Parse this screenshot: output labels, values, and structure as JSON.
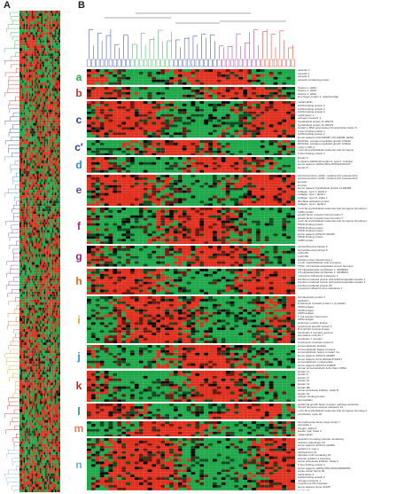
{
  "figure": {
    "panel_a_label": "A",
    "panel_b_label": "B"
  },
  "colors": {
    "red": "#e0301e",
    "green": "#1fa84a",
    "black": "#0a0a0a"
  },
  "clusters": [
    {
      "id": "a",
      "letter": "a",
      "color": "#2ea84f",
      "rows": 6,
      "genes": [
        "caveolin 2",
        "caveolin 1",
        "caveolin 1",
        "caveolin-containing protein"
      ]
    },
    {
      "id": "b",
      "letter": "b",
      "color": "#c0392b",
      "rows": 5,
      "genes": [
        "histone 1, H2bk",
        "histone 1, H2bd",
        "histone 1, H2bd",
        "zinc finger protein 1, mitochondrial",
        "histone 1, H2bd"
      ]
    },
    {
      "id": "c",
      "letter": "c",
      "color": "#2a3f9e",
      "rows": 14,
      "genes": [
        "melanophilin",
        "GATA binding protein 3",
        "GATA binding protein 3",
        "GATA binding protein 3",
        "trefoil factor 1",
        "estrogen receptor 1",
        "hypothetical protein FLJ20273",
        "hypothetical protein FLJ20273",
        "similar to RNA polymerase III transcription factor 5",
        "X-box binding protein 1",
        "GATA binding protein 3",
        "Homo sapiens LOC143038 LOC143038 mRNA",
        "estrogen receptor 1"
      ]
    },
    {
      "id": "c2",
      "letter": "c'",
      "color": "#2a3f9e",
      "rows": 6,
      "genes": [
        "RAIG/fas, estrogen-regulated growth inhibitor",
        "RAIG/fas, estrogen-regulated growth inhibitor",
        "cyclin 1 (GP 1)",
        "v-erb-b2 erythroblastic leukemia viral oncogene",
        "X-box binding protein 1",
        "estrogen receptor 1"
      ]
    },
    {
      "id": "d",
      "letter": "d",
      "color": "#2c8fc9",
      "rows": 6,
      "genes": [
        "keratin 6",
        "H sapiens ADAM 20 keratin 6, type II, cuticular",
        "Homo sapiens mRNA cDNA DKFZp434C107",
        "keratin 5"
      ]
    },
    {
      "id": "e",
      "letter": "e",
      "color": "#5a4fb0",
      "rows": 12,
      "genes": [
        "secreted protein, acidic, cysteine-rich (osteonectin)",
        "secreted protein, acidic, cysteine-rich (osteonectin)",
        "lumican",
        "lumican",
        "Homo sapiens hypothetical protein FLJ20489",
        "collagen, type V, alpha 2",
        "collagen, type I, alpha 1",
        "collagen, type III, alpha 1",
        "fibroblast activation protein",
        "collagen, type I, alpha 2",
        "collagen, type I, alpha 2",
        "secreted protein, acidic, cysteine-rich (osteonectin)"
      ]
    },
    {
      "id": "f",
      "letter": "f",
      "color": "#a02a8f",
      "rows": 14,
      "genes": [
        "v-erb-b2 erythroblastic leukemia viral oncogene homolog 2",
        "CAB2 protein",
        "growth factor receptor-bound protein 7",
        "growth factor receptor-bound protein 7",
        "v-erb-b2 erythroblastic leukemia viral oncogene homolog 2",
        "PPAR binding protein",
        "PPAR binding protein",
        "PPAR binding protein",
        "Homo sapiens cDNA FLJ31046",
        "PPAR binding protein",
        "CAB2 protein"
      ]
    },
    {
      "id": "g",
      "letter": "g",
      "color": "#8e2a8a",
      "rows": 8,
      "genes": [
        "serine/threonine kinase 6",
        "serine/threonine kinase 6",
        "cyclin B1",
        "cyclin B2",
        "pituitary tumor-transforming 1",
        "v-myb myeloblastosis viral oncogene",
        "TPX2, microtubule-associated protein homolog"
      ]
    },
    {
      "id": "h",
      "letter": "h",
      "color": "#d86a1e",
      "rows": 10,
      "genes": [
        "2,5-oligoadenylate synthetase 1, 40/46kDa",
        "2,5-oligoadenylate synthetase 1, 40/46kDa",
        "myxovirus (influenza) resistance 1",
        "interferon-induced protein with tetratricopeptide repeats 1",
        "interferon-induced protein with tetratricopeptide repeats 3",
        "interferon-induced protein 35",
        "myxovirus influenza virus resistance 1"
      ]
    },
    {
      "id": "i",
      "letter": "i",
      "color": "#e0a020",
      "rows": 18,
      "genes": [
        "hematopoietic protein 1",
        "pleckstrin",
        "lymphocyte cytosolic protein 1 (L-plastin)",
        "CD53 antigen",
        "CD48 antigen",
        "CD53 antigen",
        "T cell receptor beta locus",
        "CD52 antigen",
        "leukocyte tyrosine kinase",
        "lymphocyte specific protein 1",
        "B lymphoid tyrosine kinase",
        "interleukin 2 receptor, gamma",
        "chemokine receptor 7",
        "interleukin 7 receptor",
        "lymphocyte cytosolic protein 2",
        "granzyme K",
        "interleukin 2 receptor, gamma"
      ]
    },
    {
      "id": "j",
      "letter": "j",
      "color": "#2c8fc9",
      "rows": 9,
      "genes": [
        "immunoglobulin lambda",
        "immunoglobulin kappa constant",
        "immunoglobulin heavy constant mu",
        "Homo sapiens cDNA FLJ26905",
        "Homo sapiens clone IMAGE:4719917",
        "immunoglobulin J polypeptide",
        "Homo sapiens CDNA FLJ34695",
        "human immunoglobulin light chain mRNA"
      ]
    },
    {
      "id": "k",
      "letter": "k",
      "color": "#d02020",
      "rows": 12,
      "genes": [
        "keratin 17",
        "keratin 5",
        "keratin 17",
        "keratin 15",
        "keratin 14",
        "keratin 6B",
        "serine proteinase inhibitor, clade B",
        "keratin 16",
        "calcium binding protein",
        "desmoplakin",
        "S100 calcium binding protein A2",
        "kallikrein 5"
      ]
    },
    {
      "id": "l",
      "letter": "l",
      "color": "#2a8fa8",
      "rows": 6,
      "genes": [
        "epidermal growth factor receptor pathway substrate",
        "thyroid hormone receptor interactor 13",
        "v-erb-b2 erythroblastic leukemia viral oncogene homolog 3",
        "cell division cycle 20"
      ]
    },
    {
      "id": "m",
      "letter": "m",
      "color": "#e08060",
      "rows": 6,
      "genes": [
        "chemokine-like factor super family 7",
        "neuropilin 1",
        "integrin, alpha 6",
        "keratin, hair, basic 6",
        "melanophilin"
      ]
    },
    {
      "id": "n",
      "letter": "n",
      "color": "#6fb0d8",
      "rows": 20,
      "genes": [
        "pleckstrin homology domain containing",
        "carbonic anhydrase XII",
        "Homo sapiens cDNA FLJ10000",
        "cadherin 3, type 1",
        "forkhead box A1",
        "tripartite motif-containing 29",
        "anterior gradient 2 homolog",
        "serine proteinase inhibitor, clade A",
        "X-box binding protein 1",
        "Homo sapiens mRNA cDNA DKFZp564F053",
        "solute carrier family 39",
        "trefoil factor 3",
        "GATA binding protein 3",
        "estrogen receptor 1",
        "cytochrome b5 reductase",
        "Homo sapiens clone 24405",
        "keratin 18",
        "mucin 1, transmembrane"
      ]
    }
  ]
}
